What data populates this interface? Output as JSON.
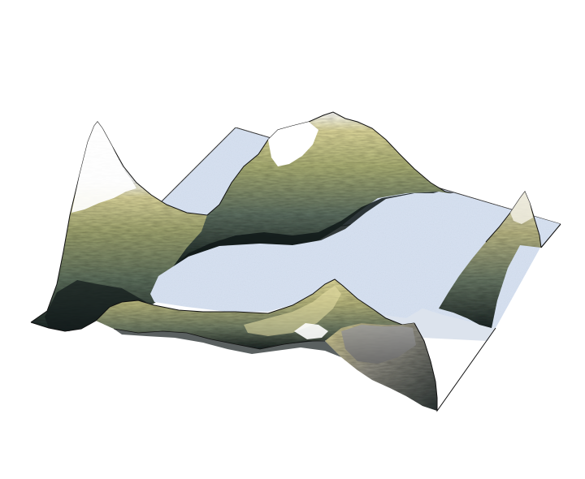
{
  "scene": {
    "subject": "terrain-surface",
    "colors": {
      "background": "#ffffff",
      "water": "#d6e1f2",
      "water_shadow": "#b9c7dc",
      "snow": "#ffffff",
      "high_tan": "#d8d28e",
      "mid_olive": "#a7ab6e",
      "low_green": "#6f7f62",
      "deep_shadow": "#1f2a2a",
      "gray_rock": "#8e8e8e",
      "edge_line": "#111111"
    }
  }
}
